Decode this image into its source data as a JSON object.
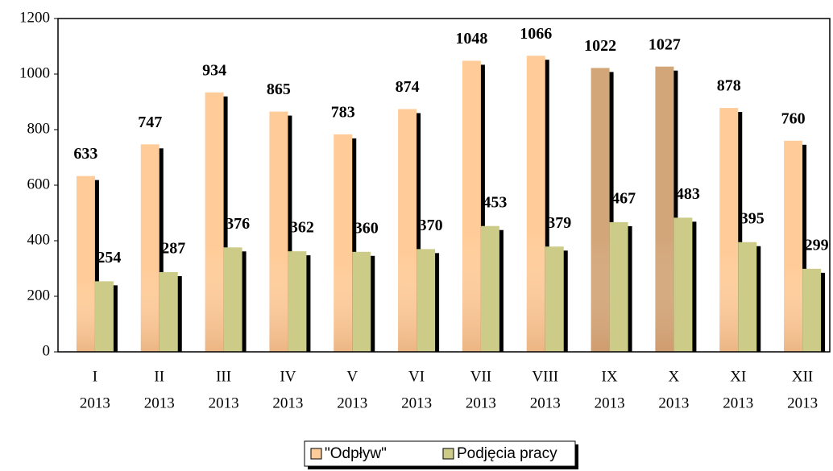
{
  "chart_data": {
    "type": "bar",
    "categories": [
      [
        "I",
        "2013"
      ],
      [
        "II",
        "2013"
      ],
      [
        "III",
        "2013"
      ],
      [
        "IV",
        "2013"
      ],
      [
        "V",
        "2013"
      ],
      [
        "VI",
        "2013"
      ],
      [
        "VII",
        "2013"
      ],
      [
        "VIII",
        "2013"
      ],
      [
        "IX",
        "2013"
      ],
      [
        "X",
        "2013"
      ],
      [
        "XI",
        "2013"
      ],
      [
        "XII",
        "2013"
      ]
    ],
    "series": [
      {
        "name": "\"Odpływ\"",
        "color": "#ffcc99",
        "colors": [
          "#ffcc99",
          "#ffcc99",
          "#ffcc99",
          "#ffcc99",
          "#ffcc99",
          "#ffcc99",
          "#ffcc99",
          "#ffcc99",
          "#d2a679",
          "#d2a679",
          "#ffcc99",
          "#ffcc99"
        ],
        "values": [
          633,
          747,
          934,
          865,
          783,
          874,
          1048,
          1066,
          1022,
          1027,
          878,
          760
        ]
      },
      {
        "name": "Podjęcia pracy",
        "color": "#cccc88",
        "values": [
          254,
          287,
          376,
          362,
          360,
          370,
          453,
          379,
          467,
          483,
          395,
          299
        ]
      }
    ],
    "ylim": [
      0,
      1200
    ],
    "yticks": [
      0,
      200,
      400,
      600,
      800,
      1000,
      1200
    ],
    "grid": false,
    "legend": "bottom"
  }
}
